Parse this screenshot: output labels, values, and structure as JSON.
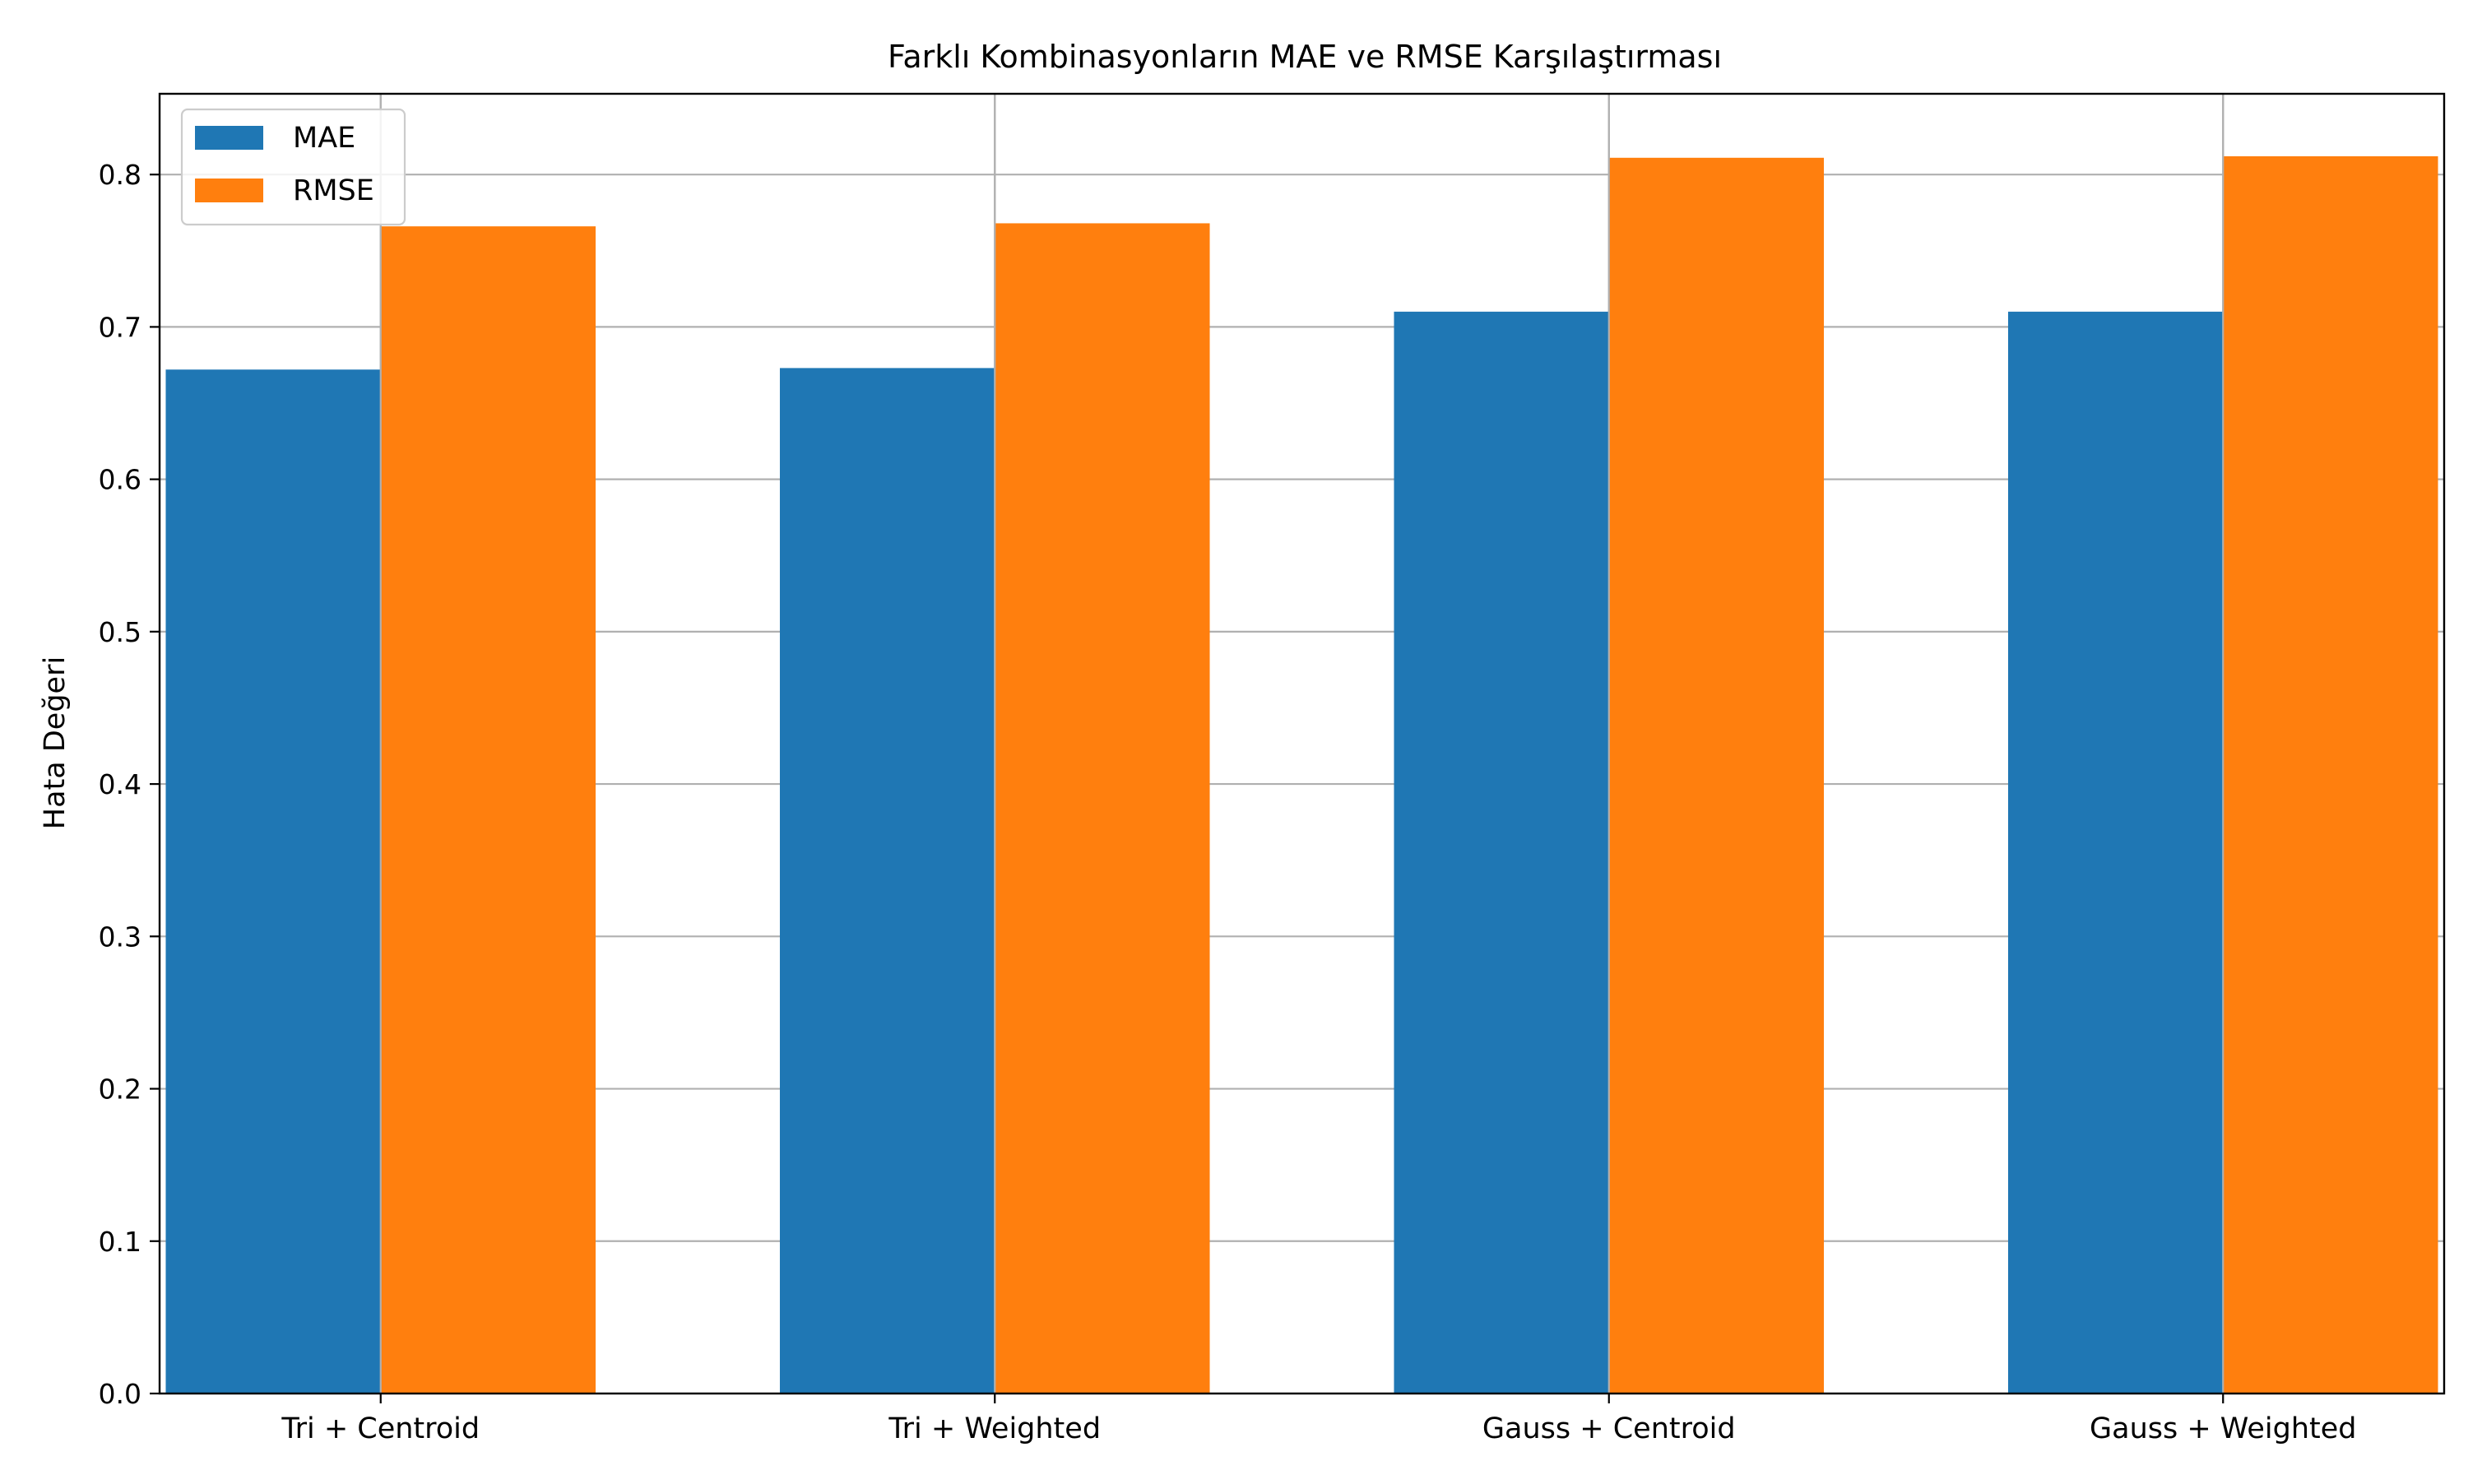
{
  "chart_data": {
    "type": "bar",
    "title": "Farklı Kombinasyonların MAE ve RMSE Karşılaştırması",
    "xlabel": "",
    "ylabel": "Hata Değeri",
    "categories": [
      "Tri + Centroid",
      "Tri + Weighted",
      "Gauss + Centroid",
      "Gauss + Weighted"
    ],
    "series": [
      {
        "name": "MAE",
        "color": "#1f77b4",
        "values": [
          0.672,
          0.673,
          0.71,
          0.71
        ]
      },
      {
        "name": "RMSE",
        "color": "#ff7f0e",
        "values": [
          0.766,
          0.768,
          0.811,
          0.812
        ]
      }
    ],
    "ylim": [
      0,
      0.853
    ],
    "yticks": [
      "0.0",
      "0.1",
      "0.2",
      "0.3",
      "0.4",
      "0.5",
      "0.6",
      "0.7",
      "0.8"
    ],
    "grid": true,
    "legend_position": "top-left"
  }
}
